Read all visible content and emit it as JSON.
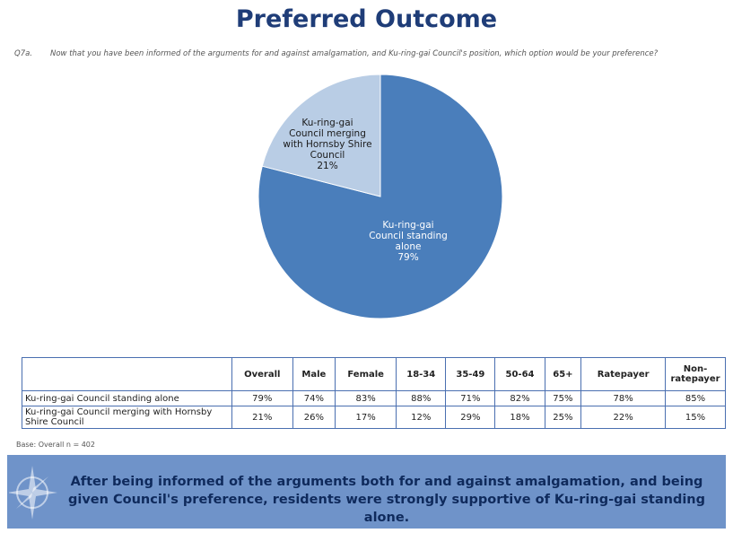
{
  "header": {
    "title": "Preferred Outcome",
    "question_id": "Q7a.",
    "question_text": "Now that you have been informed of the arguments for and against amalgamation, and Ku-ring-gai Council's position, which option would be your preference?"
  },
  "chart_data": {
    "type": "pie",
    "slices": [
      {
        "label": [
          "Ku-ring-gai",
          "Council standing",
          "alone"
        ],
        "value": 79,
        "value_label": "79%",
        "color": "#4a7ebb"
      },
      {
        "label": [
          "Ku-ring-gai",
          "Council merging",
          "with Hornsby Shire",
          "Council"
        ],
        "value": 21,
        "value_label": "21%",
        "color": "#b9cde5"
      }
    ]
  },
  "table": {
    "columns": [
      "Overall",
      "Male",
      "Female",
      "18-34",
      "35-49",
      "50-64",
      "65+",
      "Ratepayer",
      "Non-ratepayer"
    ],
    "rows": [
      {
        "label": "Ku-ring-gai Council standing alone",
        "values": [
          "79%",
          "74%",
          "83%",
          "88%",
          "71%",
          "82%",
          "75%",
          "78%",
          "85%"
        ]
      },
      {
        "label": "Ku-ring-gai Council merging with Hornsby Shire Council",
        "values": [
          "21%",
          "26%",
          "17%",
          "12%",
          "29%",
          "18%",
          "25%",
          "22%",
          "15%"
        ]
      }
    ]
  },
  "base_note": "Base: Overall n = 402",
  "banner": {
    "text": "After being informed of the arguments both for and against amalgamation, and being given Council's preference, residents were strongly supportive of Ku-ring-gai standing alone.",
    "icon": "compass-icon"
  }
}
